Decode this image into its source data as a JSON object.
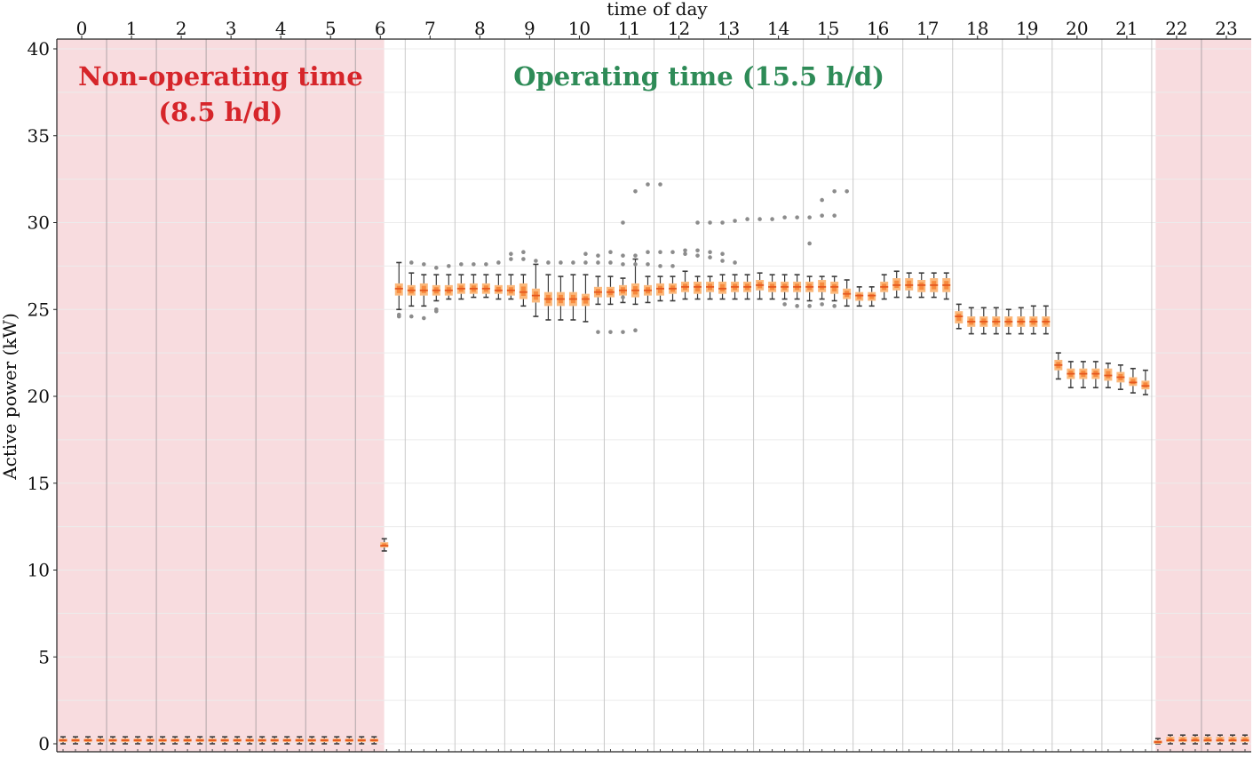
{
  "chart_data": {
    "type": "box",
    "xlabel": "time of day",
    "ylabel": "Active power (kW)",
    "ylim": [
      0,
      40
    ],
    "yticks": [
      0,
      5,
      10,
      15,
      20,
      25,
      30,
      35,
      40
    ],
    "xlim": [
      -0.5,
      23.5
    ],
    "hours": [
      "0",
      "1",
      "2",
      "3",
      "4",
      "5",
      "6",
      "7",
      "8",
      "9",
      "10",
      "11",
      "12",
      "13",
      "14",
      "15",
      "16",
      "17",
      "18",
      "19",
      "20",
      "21",
      "22",
      "23"
    ],
    "grid": true,
    "regions": [
      {
        "label_lines": [
          "Non-operating time",
          "(8.5 h/d)"
        ],
        "x_start": -0.5,
        "x_end": 6.08,
        "color": "#f8dcdf",
        "text_color": "#d6252a",
        "kind": "non-operating"
      },
      {
        "label_lines": [
          "Operating time (15.5 h/d)"
        ],
        "x_start": 6.08,
        "x_end": 21.58,
        "color": "#ffffff",
        "text_color": "#2e8b57",
        "kind": "operating"
      },
      {
        "label_lines": [],
        "x_start": 21.58,
        "x_end": 23.5,
        "color": "#f8dcdf",
        "text_color": "#d6252a",
        "kind": "non-operating"
      }
    ],
    "boxes": [
      {
        "x": -0.375,
        "median": 0.2,
        "q1": 0.1,
        "q3": 0.3,
        "whislo": 0.0,
        "whishi": 0.4
      },
      {
        "x": -0.125,
        "median": 0.2,
        "q1": 0.1,
        "q3": 0.3,
        "whislo": 0.0,
        "whishi": 0.4
      },
      {
        "x": 0.125,
        "median": 0.2,
        "q1": 0.1,
        "q3": 0.3,
        "whislo": 0.0,
        "whishi": 0.4
      },
      {
        "x": 0.375,
        "median": 0.2,
        "q1": 0.1,
        "q3": 0.3,
        "whislo": 0.0,
        "whishi": 0.4
      },
      {
        "x": 0.625,
        "median": 0.2,
        "q1": 0.1,
        "q3": 0.3,
        "whislo": 0.0,
        "whishi": 0.4
      },
      {
        "x": 0.875,
        "median": 0.2,
        "q1": 0.1,
        "q3": 0.3,
        "whislo": 0.0,
        "whishi": 0.4
      },
      {
        "x": 1.125,
        "median": 0.2,
        "q1": 0.1,
        "q3": 0.3,
        "whislo": 0.0,
        "whishi": 0.4
      },
      {
        "x": 1.375,
        "median": 0.2,
        "q1": 0.1,
        "q3": 0.3,
        "whislo": 0.0,
        "whishi": 0.4
      },
      {
        "x": 1.625,
        "median": 0.2,
        "q1": 0.1,
        "q3": 0.3,
        "whislo": 0.0,
        "whishi": 0.4
      },
      {
        "x": 1.875,
        "median": 0.2,
        "q1": 0.1,
        "q3": 0.3,
        "whislo": 0.0,
        "whishi": 0.4
      },
      {
        "x": 2.125,
        "median": 0.2,
        "q1": 0.1,
        "q3": 0.3,
        "whislo": 0.0,
        "whishi": 0.4
      },
      {
        "x": 2.375,
        "median": 0.2,
        "q1": 0.1,
        "q3": 0.3,
        "whislo": 0.0,
        "whishi": 0.4
      },
      {
        "x": 2.625,
        "median": 0.2,
        "q1": 0.1,
        "q3": 0.3,
        "whislo": 0.0,
        "whishi": 0.4
      },
      {
        "x": 2.875,
        "median": 0.2,
        "q1": 0.1,
        "q3": 0.3,
        "whislo": 0.0,
        "whishi": 0.4
      },
      {
        "x": 3.125,
        "median": 0.2,
        "q1": 0.1,
        "q3": 0.3,
        "whislo": 0.0,
        "whishi": 0.4
      },
      {
        "x": 3.375,
        "median": 0.2,
        "q1": 0.1,
        "q3": 0.3,
        "whislo": 0.0,
        "whishi": 0.4
      },
      {
        "x": 3.625,
        "median": 0.2,
        "q1": 0.1,
        "q3": 0.3,
        "whislo": 0.0,
        "whishi": 0.4
      },
      {
        "x": 3.875,
        "median": 0.2,
        "q1": 0.1,
        "q3": 0.3,
        "whislo": 0.0,
        "whishi": 0.4
      },
      {
        "x": 4.125,
        "median": 0.2,
        "q1": 0.1,
        "q3": 0.3,
        "whislo": 0.0,
        "whishi": 0.4
      },
      {
        "x": 4.375,
        "median": 0.2,
        "q1": 0.1,
        "q3": 0.3,
        "whislo": 0.0,
        "whishi": 0.4
      },
      {
        "x": 4.625,
        "median": 0.2,
        "q1": 0.1,
        "q3": 0.3,
        "whislo": 0.0,
        "whishi": 0.4
      },
      {
        "x": 4.875,
        "median": 0.2,
        "q1": 0.1,
        "q3": 0.3,
        "whislo": 0.0,
        "whishi": 0.4
      },
      {
        "x": 5.125,
        "median": 0.2,
        "q1": 0.1,
        "q3": 0.3,
        "whislo": 0.0,
        "whishi": 0.4
      },
      {
        "x": 5.375,
        "median": 0.2,
        "q1": 0.1,
        "q3": 0.3,
        "whislo": 0.0,
        "whishi": 0.4
      },
      {
        "x": 5.625,
        "median": 0.2,
        "q1": 0.1,
        "q3": 0.3,
        "whislo": 0.0,
        "whishi": 0.4
      },
      {
        "x": 5.875,
        "median": 0.2,
        "q1": 0.1,
        "q3": 0.3,
        "whislo": 0.0,
        "whishi": 0.4
      },
      {
        "x": 6.08,
        "median": 11.4,
        "q1": 11.3,
        "q3": 11.6,
        "whislo": 11.1,
        "whishi": 11.8
      },
      {
        "x": 6.375,
        "median": 26.2,
        "q1": 25.8,
        "q3": 26.5,
        "whislo": 25.0,
        "whishi": 27.7,
        "outliers": [
          24.7,
          24.6
        ]
      },
      {
        "x": 6.625,
        "median": 26.1,
        "q1": 25.8,
        "q3": 26.4,
        "whislo": 25.2,
        "whishi": 27.1,
        "outliers": [
          27.7,
          24.6
        ]
      },
      {
        "x": 6.875,
        "median": 26.1,
        "q1": 25.8,
        "q3": 26.5,
        "whislo": 25.2,
        "whishi": 27.0,
        "outliers": [
          27.6,
          24.5
        ]
      },
      {
        "x": 7.125,
        "median": 26.1,
        "q1": 25.8,
        "q3": 26.4,
        "whislo": 25.5,
        "whishi": 27.0,
        "outliers": [
          27.4,
          24.9,
          25.0
        ]
      },
      {
        "x": 7.375,
        "median": 26.1,
        "q1": 25.8,
        "q3": 26.4,
        "whislo": 25.6,
        "whishi": 27.0,
        "outliers": [
          27.5
        ]
      },
      {
        "x": 7.625,
        "median": 26.2,
        "q1": 25.9,
        "q3": 26.5,
        "whislo": 25.6,
        "whishi": 27.0,
        "outliers": [
          27.6
        ]
      },
      {
        "x": 7.875,
        "median": 26.2,
        "q1": 25.9,
        "q3": 26.5,
        "whislo": 25.7,
        "whishi": 27.0,
        "outliers": [
          27.6
        ]
      },
      {
        "x": 8.125,
        "median": 26.2,
        "q1": 25.9,
        "q3": 26.5,
        "whislo": 25.7,
        "whishi": 27.0,
        "outliers": [
          27.6
        ]
      },
      {
        "x": 8.375,
        "median": 26.1,
        "q1": 25.9,
        "q3": 26.4,
        "whislo": 25.6,
        "whishi": 27.0,
        "outliers": [
          27.7
        ]
      },
      {
        "x": 8.625,
        "median": 26.1,
        "q1": 25.8,
        "q3": 26.4,
        "whislo": 25.6,
        "whishi": 27.0,
        "outliers": [
          28.2,
          27.9
        ]
      },
      {
        "x": 8.875,
        "median": 26.0,
        "q1": 25.6,
        "q3": 26.5,
        "whislo": 25.2,
        "whishi": 27.0,
        "outliers": [
          28.3,
          27.9
        ]
      },
      {
        "x": 9.125,
        "median": 25.8,
        "q1": 25.4,
        "q3": 26.2,
        "whislo": 24.6,
        "whishi": 27.6,
        "outliers": [
          27.8
        ]
      },
      {
        "x": 9.375,
        "median": 25.6,
        "q1": 25.2,
        "q3": 26.0,
        "whislo": 24.4,
        "whishi": 27.0,
        "outliers": [
          27.7
        ]
      },
      {
        "x": 9.625,
        "median": 25.6,
        "q1": 25.2,
        "q3": 26.0,
        "whislo": 24.4,
        "whishi": 26.9,
        "outliers": [
          27.7
        ]
      },
      {
        "x": 9.875,
        "median": 25.6,
        "q1": 25.2,
        "q3": 26.0,
        "whislo": 24.4,
        "whishi": 27.0,
        "outliers": [
          27.7
        ]
      },
      {
        "x": 10.125,
        "median": 25.6,
        "q1": 25.2,
        "q3": 25.9,
        "whislo": 24.3,
        "whishi": 27.0,
        "outliers": [
          28.2,
          27.7
        ]
      },
      {
        "x": 10.375,
        "median": 26.0,
        "q1": 25.7,
        "q3": 26.3,
        "whislo": 25.3,
        "whishi": 26.9,
        "outliers": [
          28.1,
          27.7,
          23.7
        ]
      },
      {
        "x": 10.625,
        "median": 26.0,
        "q1": 25.7,
        "q3": 26.3,
        "whislo": 25.3,
        "whishi": 26.9,
        "outliers": [
          28.3,
          27.7,
          23.7
        ]
      },
      {
        "x": 10.875,
        "median": 26.1,
        "q1": 25.8,
        "q3": 26.4,
        "whislo": 25.4,
        "whishi": 26.8,
        "outliers": [
          30.0,
          28.1,
          27.6,
          23.7,
          25.7
        ]
      },
      {
        "x": 11.125,
        "median": 26.1,
        "q1": 25.7,
        "q3": 26.5,
        "whislo": 25.3,
        "whishi": 27.9,
        "outliers": [
          31.8,
          28.1,
          27.6,
          23.8
        ]
      },
      {
        "x": 11.375,
        "median": 26.1,
        "q1": 25.8,
        "q3": 26.4,
        "whislo": 25.4,
        "whishi": 26.9,
        "outliers": [
          32.2,
          28.3,
          27.6
        ]
      },
      {
        "x": 11.625,
        "median": 26.2,
        "q1": 25.8,
        "q3": 26.5,
        "whislo": 25.5,
        "whishi": 26.9,
        "outliers": [
          32.2,
          28.3,
          27.5
        ]
      },
      {
        "x": 11.875,
        "median": 26.2,
        "q1": 25.9,
        "q3": 26.5,
        "whislo": 25.5,
        "whishi": 26.9,
        "outliers": [
          28.3,
          27.5
        ]
      },
      {
        "x": 12.125,
        "median": 26.3,
        "q1": 26.0,
        "q3": 26.6,
        "whislo": 25.6,
        "whishi": 27.2,
        "outliers": [
          28.4,
          28.2
        ]
      },
      {
        "x": 12.375,
        "median": 26.3,
        "q1": 25.9,
        "q3": 26.6,
        "whislo": 25.6,
        "whishi": 26.9,
        "outliers": [
          30.0,
          28.4,
          28.1
        ]
      },
      {
        "x": 12.625,
        "median": 26.3,
        "q1": 26.0,
        "q3": 26.6,
        "whislo": 25.6,
        "whishi": 26.9,
        "outliers": [
          30.0,
          28.3,
          28.0
        ]
      },
      {
        "x": 12.875,
        "median": 26.2,
        "q1": 25.9,
        "q3": 26.6,
        "whislo": 25.6,
        "whishi": 27.0,
        "outliers": [
          30.0,
          28.2,
          27.8
        ]
      },
      {
        "x": 13.125,
        "median": 26.3,
        "q1": 26.0,
        "q3": 26.6,
        "whislo": 25.6,
        "whishi": 27.0,
        "outliers": [
          30.1,
          27.7
        ]
      },
      {
        "x": 13.375,
        "median": 26.3,
        "q1": 26.0,
        "q3": 26.6,
        "whislo": 25.6,
        "whishi": 27.0,
        "outliers": [
          30.2
        ]
      },
      {
        "x": 13.625,
        "median": 26.4,
        "q1": 26.1,
        "q3": 26.7,
        "whislo": 25.6,
        "whishi": 27.1,
        "outliers": [
          30.2
        ]
      },
      {
        "x": 13.875,
        "median": 26.3,
        "q1": 26.0,
        "q3": 26.6,
        "whislo": 25.6,
        "whishi": 27.0,
        "outliers": [
          30.2
        ]
      },
      {
        "x": 14.125,
        "median": 26.3,
        "q1": 26.0,
        "q3": 26.6,
        "whislo": 25.6,
        "whishi": 27.0,
        "outliers": [
          30.3,
          25.3
        ]
      },
      {
        "x": 14.375,
        "median": 26.3,
        "q1": 26.0,
        "q3": 26.6,
        "whislo": 25.6,
        "whishi": 27.0,
        "outliers": [
          30.3,
          25.2
        ]
      },
      {
        "x": 14.625,
        "median": 26.3,
        "q1": 26.0,
        "q3": 26.6,
        "whislo": 25.5,
        "whishi": 26.9,
        "outliers": [
          30.3,
          28.8,
          25.2
        ]
      },
      {
        "x": 14.875,
        "median": 26.3,
        "q1": 26.0,
        "q3": 26.7,
        "whislo": 25.6,
        "whishi": 26.9,
        "outliers": [
          31.3,
          30.4,
          25.3
        ]
      },
      {
        "x": 15.125,
        "median": 26.3,
        "q1": 25.9,
        "q3": 26.6,
        "whislo": 25.5,
        "whishi": 26.9,
        "outliers": [
          31.8,
          30.4,
          25.2
        ]
      },
      {
        "x": 15.375,
        "median": 25.9,
        "q1": 25.6,
        "q3": 26.2,
        "whislo": 25.2,
        "whishi": 26.7,
        "outliers": [
          31.8
        ]
      },
      {
        "x": 15.625,
        "median": 25.8,
        "q1": 25.5,
        "q3": 26.0,
        "whislo": 25.2,
        "whishi": 26.3
      },
      {
        "x": 15.875,
        "median": 25.8,
        "q1": 25.5,
        "q3": 26.0,
        "whislo": 25.2,
        "whishi": 26.3
      },
      {
        "x": 16.125,
        "median": 26.3,
        "q1": 26.0,
        "q3": 26.6,
        "whislo": 25.6,
        "whishi": 27.0
      },
      {
        "x": 16.375,
        "median": 26.4,
        "q1": 26.1,
        "q3": 26.8,
        "whislo": 25.7,
        "whishi": 27.2
      },
      {
        "x": 16.625,
        "median": 26.4,
        "q1": 26.1,
        "q3": 26.8,
        "whislo": 25.7,
        "whishi": 27.1
      },
      {
        "x": 16.875,
        "median": 26.4,
        "q1": 26.0,
        "q3": 26.7,
        "whislo": 25.7,
        "whishi": 27.1
      },
      {
        "x": 17.125,
        "median": 26.4,
        "q1": 26.0,
        "q3": 26.8,
        "whislo": 25.7,
        "whishi": 27.1
      },
      {
        "x": 17.375,
        "median": 26.4,
        "q1": 26.0,
        "q3": 26.8,
        "whislo": 25.6,
        "whishi": 27.1
      },
      {
        "x": 17.625,
        "median": 24.6,
        "q1": 24.2,
        "q3": 24.9,
        "whislo": 23.9,
        "whishi": 25.3
      },
      {
        "x": 17.875,
        "median": 24.3,
        "q1": 24.0,
        "q3": 24.6,
        "whislo": 23.6,
        "whishi": 25.1
      },
      {
        "x": 18.125,
        "median": 24.3,
        "q1": 24.0,
        "q3": 24.6,
        "whislo": 23.6,
        "whishi": 25.1
      },
      {
        "x": 18.375,
        "median": 24.3,
        "q1": 24.0,
        "q3": 24.6,
        "whislo": 23.6,
        "whishi": 25.1
      },
      {
        "x": 18.625,
        "median": 24.3,
        "q1": 24.0,
        "q3": 24.6,
        "whislo": 23.6,
        "whishi": 25.0
      },
      {
        "x": 18.875,
        "median": 24.3,
        "q1": 24.0,
        "q3": 24.6,
        "whislo": 23.6,
        "whishi": 25.1
      },
      {
        "x": 19.125,
        "median": 24.3,
        "q1": 24.0,
        "q3": 24.6,
        "whislo": 23.6,
        "whishi": 25.2
      },
      {
        "x": 19.375,
        "median": 24.3,
        "q1": 24.0,
        "q3": 24.6,
        "whislo": 23.6,
        "whishi": 25.2
      },
      {
        "x": 19.625,
        "median": 21.8,
        "q1": 21.5,
        "q3": 22.1,
        "whislo": 21.0,
        "whishi": 22.5
      },
      {
        "x": 19.875,
        "median": 21.3,
        "q1": 21.0,
        "q3": 21.6,
        "whislo": 20.5,
        "whishi": 22.0
      },
      {
        "x": 20.125,
        "median": 21.3,
        "q1": 21.0,
        "q3": 21.6,
        "whislo": 20.5,
        "whishi": 22.0
      },
      {
        "x": 20.375,
        "median": 21.3,
        "q1": 21.0,
        "q3": 21.6,
        "whislo": 20.5,
        "whishi": 22.0
      },
      {
        "x": 20.625,
        "median": 21.2,
        "q1": 20.9,
        "q3": 21.6,
        "whislo": 20.5,
        "whishi": 21.9
      },
      {
        "x": 20.875,
        "median": 21.1,
        "q1": 20.8,
        "q3": 21.4,
        "whislo": 20.4,
        "whishi": 21.8
      },
      {
        "x": 21.125,
        "median": 20.8,
        "q1": 20.6,
        "q3": 21.1,
        "whislo": 20.2,
        "whishi": 21.6
      },
      {
        "x": 21.375,
        "median": 20.6,
        "q1": 20.4,
        "q3": 20.9,
        "whislo": 20.1,
        "whishi": 21.5
      },
      {
        "x": 21.625,
        "median": 0.1,
        "q1": 0.0,
        "q3": 0.2,
        "whislo": 0.0,
        "whishi": 0.3
      },
      {
        "x": 21.875,
        "median": 0.2,
        "q1": 0.1,
        "q3": 0.4,
        "whislo": 0.0,
        "whishi": 0.5
      },
      {
        "x": 22.125,
        "median": 0.2,
        "q1": 0.1,
        "q3": 0.4,
        "whislo": 0.0,
        "whishi": 0.5
      },
      {
        "x": 22.375,
        "median": 0.2,
        "q1": 0.1,
        "q3": 0.4,
        "whislo": 0.0,
        "whishi": 0.5
      },
      {
        "x": 22.625,
        "median": 0.2,
        "q1": 0.1,
        "q3": 0.4,
        "whislo": 0.0,
        "whishi": 0.5
      },
      {
        "x": 22.875,
        "median": 0.2,
        "q1": 0.1,
        "q3": 0.4,
        "whislo": 0.0,
        "whishi": 0.5
      },
      {
        "x": 23.125,
        "median": 0.2,
        "q1": 0.1,
        "q3": 0.4,
        "whislo": 0.0,
        "whishi": 0.5
      },
      {
        "x": 23.375,
        "median": 0.2,
        "q1": 0.1,
        "q3": 0.4,
        "whislo": 0.0,
        "whishi": 0.5
      }
    ],
    "colors": {
      "box_fill": "#fbb97c",
      "box_core": "#f78a3e",
      "median": "#e4571f",
      "whisker": "#3a3a3a",
      "outlier": "#8c8c8c",
      "grid_major": "#c8c8c8",
      "grid_minor": "#ececec",
      "region_sep": "#b0a5a8"
    }
  }
}
